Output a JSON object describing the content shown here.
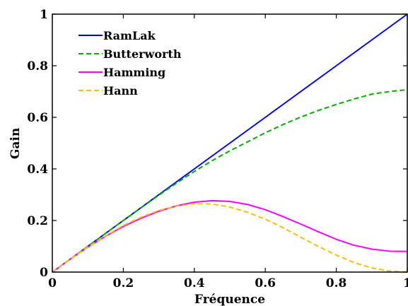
{
  "chart_data": {
    "type": "line",
    "xlabel": "Fréquence",
    "ylabel": "Gain",
    "xlim": [
      0,
      1
    ],
    "ylim": [
      0,
      1
    ],
    "xticks": [
      0,
      0.2,
      0.4,
      0.6,
      0.8,
      1
    ],
    "yticks": [
      0,
      0.2,
      0.4,
      0.6,
      0.8,
      1
    ],
    "xtick_labels": [
      "0",
      "0.2",
      "0.4",
      "0.6",
      "0.8",
      "1"
    ],
    "ytick_labels": [
      "0",
      "0.2",
      "0.4",
      "0.6",
      "0.8",
      "1"
    ],
    "grid": false,
    "legend_position": "top-left",
    "x": [
      0,
      0.05,
      0.1,
      0.15,
      0.2,
      0.25,
      0.3,
      0.35,
      0.4,
      0.45,
      0.5,
      0.55,
      0.6,
      0.65,
      0.7,
      0.75,
      0.8,
      0.85,
      0.9,
      0.95,
      1.0
    ],
    "series": [
      {
        "name": "RamLak",
        "color": "#0000ff",
        "dash": "solid",
        "values": [
          0,
          0.05,
          0.1,
          0.15,
          0.2,
          0.25,
          0.3,
          0.35,
          0.4,
          0.45,
          0.5,
          0.55,
          0.6,
          0.65,
          0.7,
          0.75,
          0.8,
          0.85,
          0.9,
          0.95,
          1.0
        ]
      },
      {
        "name": "Butterworth",
        "color": "#00b000",
        "dash": "dashed",
        "values": [
          0,
          0.05,
          0.1,
          0.15,
          0.2,
          0.249,
          0.298,
          0.345,
          0.39,
          0.432,
          0.47,
          0.505,
          0.54,
          0.572,
          0.601,
          0.627,
          0.65,
          0.671,
          0.69,
          0.7,
          0.707
        ]
      },
      {
        "name": "Hamming",
        "color": "#ff00ff",
        "dash": "solid",
        "values": [
          0,
          0.05,
          0.097,
          0.139,
          0.177,
          0.209,
          0.236,
          0.257,
          0.271,
          0.277,
          0.274,
          0.262,
          0.242,
          0.215,
          0.186,
          0.156,
          0.127,
          0.104,
          0.089,
          0.081,
          0.08
        ]
      },
      {
        "name": "Hann",
        "color": "#ffc000",
        "dash": "dashed",
        "values": [
          0,
          0.05,
          0.098,
          0.14,
          0.181,
          0.213,
          0.239,
          0.256,
          0.265,
          0.264,
          0.252,
          0.232,
          0.205,
          0.172,
          0.135,
          0.099,
          0.066,
          0.037,
          0.016,
          0.004,
          0.0
        ]
      }
    ]
  }
}
